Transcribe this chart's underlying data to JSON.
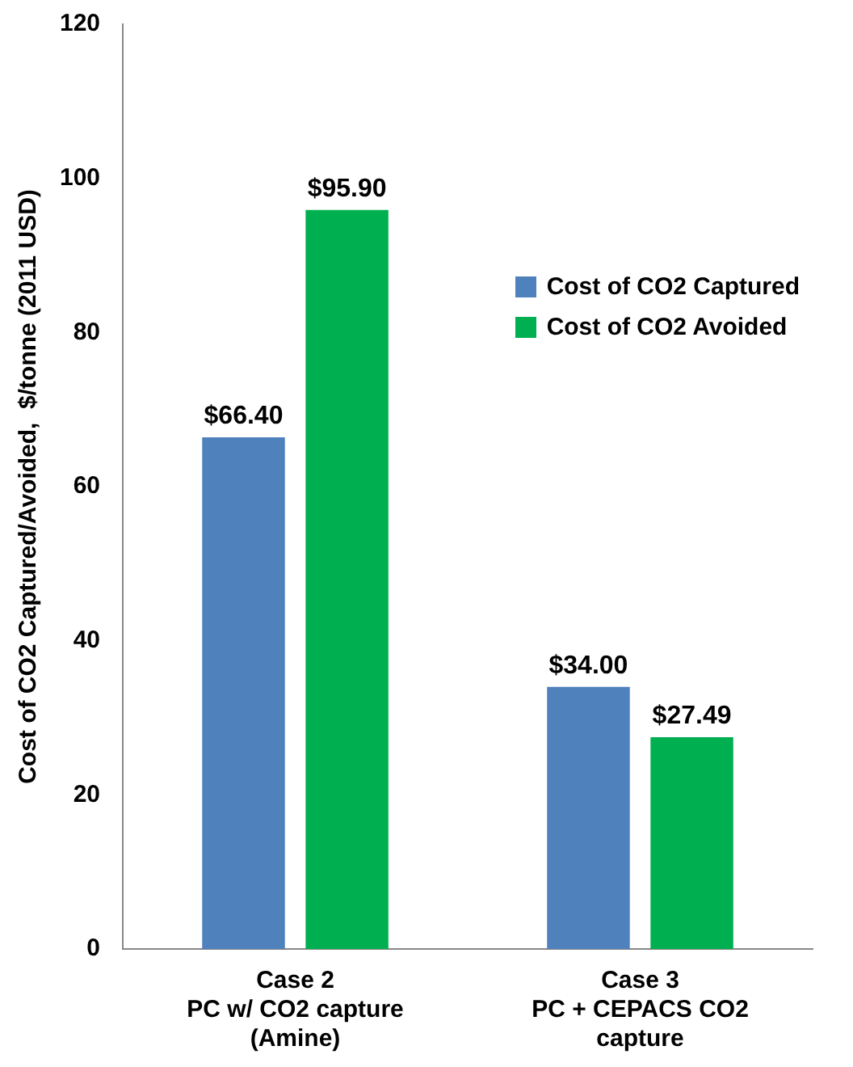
{
  "chart_data": {
    "type": "bar",
    "ylabel": "Cost of CO2 Captured/Avoided,  $/tonne (2011 USD)",
    "categories": [
      "Case 2\nPC w/ CO2 capture\n(Amine)",
      "Case 3\nPC + CEPACS CO2\ncapture"
    ],
    "series": [
      {
        "name": "Cost of CO2 Captured",
        "color": "#4f81bd",
        "values": [
          66.4,
          34.0
        ],
        "value_labels": [
          "$66.40",
          "$34.00"
        ]
      },
      {
        "name": "Cost of CO2 Avoided",
        "color": "#00b050",
        "values": [
          95.9,
          27.49
        ],
        "value_labels": [
          "$95.90",
          "$27.49"
        ]
      }
    ],
    "ylim": [
      0,
      120
    ],
    "yticks": [
      0,
      20,
      40,
      60,
      80,
      100,
      120
    ],
    "grid": false,
    "legend": "right"
  }
}
